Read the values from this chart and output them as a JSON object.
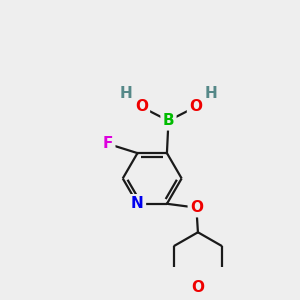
{
  "bg_color": "#eeeeee",
  "bond_color": "#1a1a1a",
  "atom_colors": {
    "B": "#00bb00",
    "O": "#ee0000",
    "H": "#558888",
    "F": "#dd00dd",
    "N": "#0000ee",
    "C": "#1a1a1a"
  },
  "lw": 1.6,
  "fs": 11
}
